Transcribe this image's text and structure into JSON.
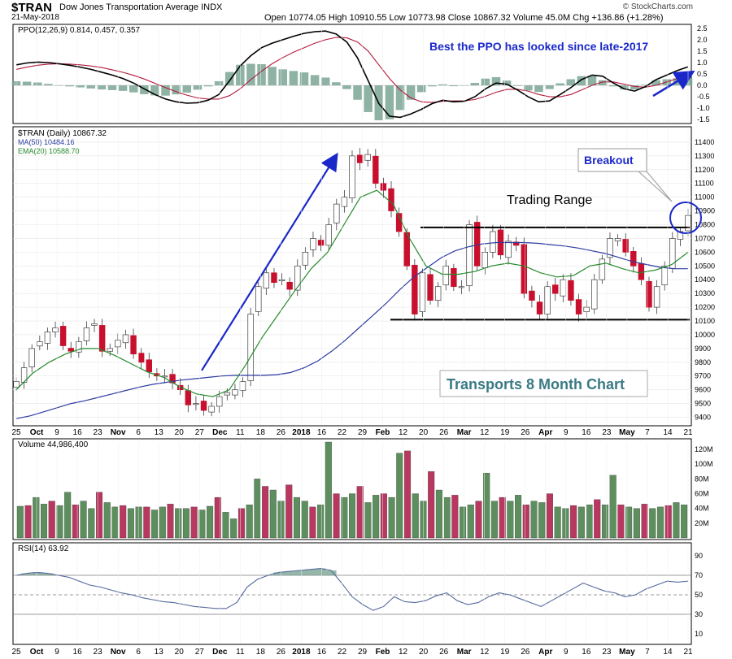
{
  "header": {
    "symbol": "$TRAN",
    "name": "Dow Jones Transportation Average INDX",
    "date": "21-May-2018",
    "quote": "Open 10774.05  High 10910.55  Low 10773.98  Close 10867.32  Volume 45.0M  Chg +136.86 (+1.28%)",
    "brand": "© StockCharts.com"
  },
  "chart_data": [
    {
      "type": "line",
      "panel": "ppo",
      "legend": "PPO(12,26,9) 0.814, 0.457, 0.357",
      "annotation": "Best the PPO has looked since late-2017",
      "ylim": [
        -1.6,
        2.6
      ],
      "y_ticks": [
        "2.5",
        "2.0",
        "1.5",
        "1.0",
        "0.5",
        "0.0",
        "-0.5",
        "-1.0",
        "-1.5"
      ],
      "series": [
        {
          "name": "PPO",
          "color": "#000000",
          "values": [
            0.9,
            0.98,
            1.02,
            1.0,
            0.95,
            0.88,
            0.8,
            0.7,
            0.58,
            0.45,
            0.3,
            0.1,
            -0.15,
            -0.4,
            -0.6,
            -0.72,
            -0.78,
            -0.76,
            -0.65,
            -0.4,
            0.2,
            0.85,
            1.3,
            1.65,
            1.85,
            2.0,
            2.15,
            2.28,
            2.35,
            2.38,
            2.25,
            1.9,
            1.2,
            0.2,
            -0.8,
            -1.35,
            -1.4,
            -1.25,
            -1.05,
            -0.8,
            -0.65,
            -0.72,
            -0.7,
            -0.5,
            -0.15,
            0.1,
            0.05,
            -0.2,
            -0.5,
            -0.72,
            -0.68,
            -0.4,
            -0.1,
            0.25,
            0.45,
            0.4,
            0.1,
            -0.15,
            -0.25,
            -0.05,
            0.25,
            0.45,
            0.65,
            0.81
          ]
        },
        {
          "name": "Signal",
          "color": "#b21a3a",
          "values": [
            0.7,
            0.8,
            0.88,
            0.93,
            0.95,
            0.93,
            0.9,
            0.85,
            0.78,
            0.68,
            0.57,
            0.44,
            0.28,
            0.09,
            -0.1,
            -0.28,
            -0.43,
            -0.55,
            -0.6,
            -0.6,
            -0.45,
            -0.15,
            0.25,
            0.62,
            0.95,
            1.22,
            1.45,
            1.65,
            1.85,
            2.0,
            2.1,
            2.08,
            1.9,
            1.5,
            0.9,
            0.3,
            -0.2,
            -0.55,
            -0.72,
            -0.75,
            -0.7,
            -0.68,
            -0.68,
            -0.62,
            -0.48,
            -0.3,
            -0.18,
            -0.17,
            -0.25,
            -0.4,
            -0.5,
            -0.5,
            -0.4,
            -0.2,
            0.0,
            0.15,
            0.15,
            0.05,
            -0.05,
            -0.08,
            0.0,
            0.15,
            0.3,
            0.46
          ]
        }
      ]
    },
    {
      "type": "candlestick",
      "panel": "price",
      "title": "Transports 8 Month Chart",
      "legend": [
        "$TRAN (Daily) 10867.32",
        "MA(50) 10484.16",
        "EMA(20) 10588.70"
      ],
      "ylim": [
        9350,
        11500
      ],
      "y_ticks": [
        11400,
        11300,
        11200,
        11100,
        11000,
        10900,
        10800,
        10700,
        10600,
        10500,
        10400,
        10300,
        10200,
        10100,
        10000,
        9900,
        9800,
        9700,
        9600,
        9500,
        9400
      ],
      "annotations": [
        "Trading Range",
        "Breakout"
      ],
      "range_top": 10780,
      "range_bottom": 10110,
      "closes": [
        9660,
        9760,
        9900,
        9950,
        10020,
        10050,
        9920,
        9880,
        9950,
        10050,
        10080,
        9880,
        9900,
        9960,
        10000,
        9860,
        9800,
        9730,
        9700,
        9700,
        9650,
        9600,
        9490,
        9500,
        9450,
        9480,
        9550,
        9580,
        9600,
        9660,
        10150,
        10350,
        10450,
        10380,
        10400,
        10330,
        10500,
        10600,
        10700,
        10650,
        10800,
        10950,
        11000,
        11300,
        11250,
        11310,
        11100,
        11050,
        10900,
        10750,
        10500,
        10150,
        10450,
        10250,
        10350,
        10500,
        10350,
        10350,
        10800,
        10500,
        10600,
        10750,
        10580,
        10680,
        10650,
        10300,
        10250,
        10150,
        10350,
        10300,
        10400,
        10250,
        10150,
        10200,
        10400,
        10550,
        10700,
        10700,
        10600,
        10500,
        10400,
        10200,
        10350,
        10500,
        10700,
        10750,
        10867
      ],
      "ma50": [
        9390,
        9410,
        9440,
        9470,
        9500,
        9520,
        9545,
        9570,
        9595,
        9620,
        9640,
        9655,
        9670,
        9680,
        9690,
        9700,
        9705,
        9705,
        9705,
        9710,
        9725,
        9760,
        9810,
        9880,
        9960,
        10050,
        10140,
        10230,
        10330,
        10420,
        10490,
        10560,
        10610,
        10640,
        10660,
        10670,
        10670,
        10670,
        10665,
        10655,
        10645,
        10630,
        10610,
        10590,
        10560,
        10530,
        10510,
        10490,
        10480,
        10480
      ],
      "ema20": [
        9600,
        9720,
        9800,
        9860,
        9900,
        9900,
        9850,
        9790,
        9730,
        9690,
        9620,
        9570,
        9550,
        9600,
        9780,
        9980,
        10150,
        10320,
        10480,
        10600,
        10800,
        11000,
        11050,
        10950,
        10700,
        10500,
        10440,
        10440,
        10460,
        10500,
        10520,
        10500,
        10450,
        10420,
        10430,
        10500,
        10520,
        10480,
        10450,
        10470,
        10510,
        10600
      ],
      "labels": [
        "Breakout",
        "Trading Range",
        "Transports 8 Month Chart"
      ],
      "x_ticks": [
        "25",
        "Oct",
        "9",
        "16",
        "23",
        "Nov",
        "6",
        "13",
        "20",
        "27",
        "Dec",
        "11",
        "18",
        "26",
        "2018",
        "16",
        "22",
        "29",
        "Feb",
        "12",
        "20",
        "26",
        "Mar",
        "12",
        "19",
        "26",
        "Apr",
        "9",
        "16",
        "23",
        "May",
        "7",
        "14",
        "21"
      ]
    },
    {
      "type": "bar",
      "panel": "volume",
      "legend": "Volume 44,986,400",
      "y_ticks": [
        "120M",
        "100M",
        "80M",
        "60M",
        "40M",
        "20M"
      ],
      "ylim": [
        0,
        130
      ],
      "values": [
        43,
        44,
        55,
        46,
        50,
        44,
        62,
        45,
        50,
        40,
        62,
        48,
        42,
        44,
        40,
        42,
        42,
        38,
        42,
        46,
        40,
        40,
        42,
        38,
        43,
        55,
        35,
        26,
        40,
        45,
        80,
        70,
        65,
        50,
        72,
        55,
        50,
        42,
        45,
        130,
        60,
        55,
        60,
        70,
        48,
        58,
        60,
        55,
        115,
        118,
        60,
        50,
        90,
        65,
        55,
        58,
        42,
        45,
        50,
        88,
        50,
        55,
        50,
        58,
        45,
        50,
        48,
        60,
        42,
        40,
        44,
        42,
        45,
        52,
        45,
        85,
        45,
        42,
        40,
        46,
        40,
        42,
        44,
        48,
        45
      ]
    },
    {
      "type": "line",
      "panel": "rsi",
      "legend": "RSI(14) 63.92",
      "ylim": [
        0,
        100
      ],
      "y_ticks": [
        90,
        70,
        50,
        30,
        10
      ],
      "values": [
        70,
        72,
        73,
        72,
        70,
        68,
        64,
        60,
        58,
        55,
        52,
        50,
        47,
        45,
        43,
        42,
        40,
        38,
        37,
        36,
        36,
        42,
        58,
        66,
        70,
        73,
        74,
        75,
        76,
        77,
        75,
        62,
        48,
        40,
        34,
        38,
        48,
        43,
        42,
        44,
        49,
        52,
        44,
        40,
        42,
        48,
        52,
        50,
        46,
        42,
        38,
        44,
        50,
        56,
        62,
        58,
        54,
        52,
        48,
        50,
        56,
        60,
        64,
        63,
        64
      ]
    }
  ]
}
